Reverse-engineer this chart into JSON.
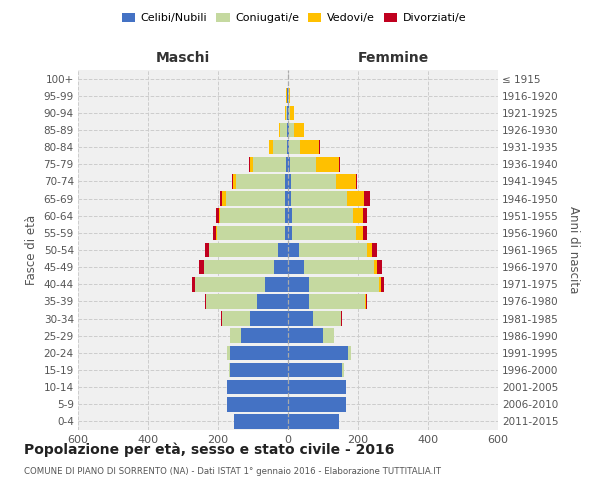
{
  "age_groups": [
    "0-4",
    "5-9",
    "10-14",
    "15-19",
    "20-24",
    "25-29",
    "30-34",
    "35-39",
    "40-44",
    "45-49",
    "50-54",
    "55-59",
    "60-64",
    "65-69",
    "70-74",
    "75-79",
    "80-84",
    "85-89",
    "90-94",
    "95-99",
    "100+"
  ],
  "birth_years": [
    "2011-2015",
    "2006-2010",
    "2001-2005",
    "1996-2000",
    "1991-1995",
    "1986-1990",
    "1981-1985",
    "1976-1980",
    "1971-1975",
    "1966-1970",
    "1961-1965",
    "1956-1960",
    "1951-1955",
    "1946-1950",
    "1941-1945",
    "1936-1940",
    "1931-1935",
    "1926-1930",
    "1921-1925",
    "1916-1920",
    "≤ 1915"
  ],
  "males": {
    "celibi": [
      155,
      175,
      175,
      165,
      165,
      135,
      110,
      90,
      65,
      40,
      30,
      8,
      8,
      8,
      8,
      5,
      3,
      2,
      2,
      2,
      0
    ],
    "coniugati": [
      0,
      0,
      0,
      5,
      10,
      30,
      80,
      145,
      200,
      200,
      195,
      195,
      185,
      170,
      140,
      95,
      40,
      20,
      5,
      2,
      0
    ],
    "vedovi": [
      0,
      0,
      0,
      0,
      0,
      0,
      0,
      0,
      0,
      1,
      2,
      3,
      5,
      12,
      10,
      10,
      10,
      5,
      3,
      1,
      0
    ],
    "divorziati": [
      0,
      0,
      0,
      0,
      0,
      1,
      2,
      3,
      10,
      12,
      10,
      8,
      8,
      5,
      2,
      1,
      0,
      0,
      0,
      0,
      0
    ]
  },
  "females": {
    "nubili": [
      145,
      165,
      165,
      155,
      170,
      100,
      70,
      60,
      60,
      45,
      30,
      10,
      10,
      8,
      8,
      5,
      3,
      2,
      2,
      1,
      0
    ],
    "coniugate": [
      0,
      0,
      0,
      5,
      10,
      30,
      80,
      160,
      200,
      200,
      195,
      185,
      175,
      160,
      130,
      75,
      30,
      15,
      5,
      2,
      0
    ],
    "vedove": [
      0,
      0,
      0,
      0,
      0,
      0,
      1,
      2,
      5,
      8,
      15,
      20,
      30,
      50,
      55,
      65,
      55,
      30,
      10,
      3,
      1
    ],
    "divorziate": [
      0,
      0,
      0,
      0,
      0,
      1,
      2,
      3,
      10,
      15,
      15,
      10,
      12,
      15,
      5,
      3,
      2,
      0,
      0,
      0,
      0
    ]
  },
  "colors": {
    "celibi": "#4472c4",
    "coniugati": "#c5d9a0",
    "vedovi": "#ffc000",
    "divorziati": "#c0001f"
  },
  "title": "Popolazione per età, sesso e stato civile - 2016",
  "subtitle": "COMUNE DI PIANO DI SORRENTO (NA) - Dati ISTAT 1° gennaio 2016 - Elaborazione TUTTITALIA.IT",
  "xlabel_left": "Maschi",
  "xlabel_right": "Femmine",
  "ylabel_left": "Fasce di età",
  "ylabel_right": "Anni di nascita",
  "xlim": 600,
  "bg_color": "#f0f0f0",
  "grid_color": "#cccccc",
  "legend_labels": [
    "Celibi/Nubili",
    "Coniugati/e",
    "Vedovi/e",
    "Divorziati/e"
  ]
}
